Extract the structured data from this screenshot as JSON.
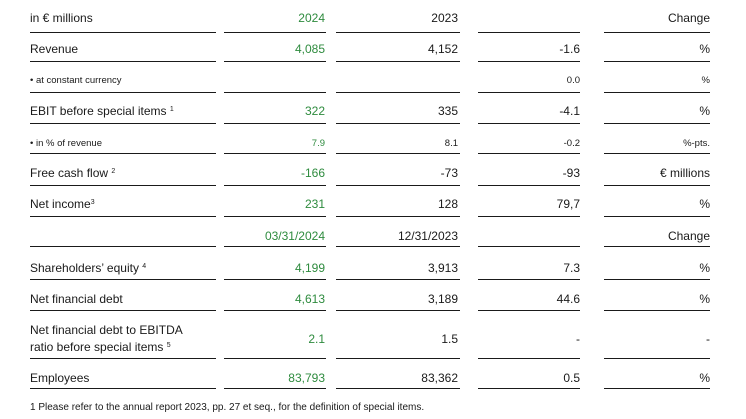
{
  "header1": {
    "label": "in € millions",
    "col1": "2024",
    "col2": "2023",
    "col4": "Change"
  },
  "rows1": [
    {
      "label": "Revenue",
      "sup": "",
      "v2024": "4,085",
      "v2023": "4,152",
      "change": "-1.6",
      "unit": "%",
      "small": false
    },
    {
      "label": "• at constant currency",
      "sup": "",
      "v2024": "",
      "v2023": "",
      "change": "0.0",
      "unit": "%",
      "small": true
    },
    {
      "label": "EBIT before special items ",
      "sup": "1",
      "v2024": "322",
      "v2023": "335",
      "change": "-4.1",
      "unit": "%",
      "small": false
    },
    {
      "label": "• in % of revenue",
      "sup": "",
      "v2024": "7.9",
      "v2023": "8.1",
      "change": "-0.2",
      "unit": "%-pts.",
      "small": true
    },
    {
      "label": "Free cash flow ",
      "sup": "2",
      "v2024": "-166",
      "v2023": "-73",
      "change": "-93",
      "unit": "€ millions",
      "small": false
    },
    {
      "label": "Net income",
      "sup": "3",
      "v2024": "231",
      "v2023": "128",
      "change": "79,7",
      "unit": "%",
      "small": false
    }
  ],
  "header2": {
    "col1": "03/31/2024",
    "col2": "12/31/2023",
    "col4": "Change"
  },
  "rows2": [
    {
      "label": "Shareholders’ equity ",
      "sup": "4",
      "v2024": "4,199",
      "v2023": "3,913",
      "change": "7.3",
      "unit": "%"
    },
    {
      "label": "Net financial debt",
      "sup": "",
      "v2024": "4,613",
      "v2023": "3,189",
      "change": "44.6",
      "unit": "%"
    },
    {
      "label": "Net financial debt to EBITDA",
      "label2": "ratio before special items ",
      "sup": "5",
      "v2024": "2.1",
      "v2023": "1.5",
      "change": "-",
      "unit": "-"
    },
    {
      "label": "Employees",
      "sup": "",
      "v2024": "83,793",
      "v2023": "83,362",
      "change": "0.5",
      "unit": "%"
    }
  ],
  "footnote": "1 Please refer to the annual report 2023, pp. 27 et seq., for the definition of special items."
}
